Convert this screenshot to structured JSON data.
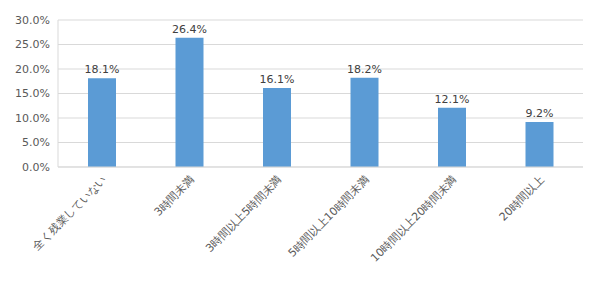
{
  "chart_data": {
    "type": "bar",
    "categories": [
      "全く残業していない",
      "3時間未満",
      "3時間以上5時間未満",
      "5時間以上10時間未満",
      "10時間以上20時間未満",
      "20時間以上"
    ],
    "values": [
      18.1,
      26.4,
      16.1,
      18.2,
      12.1,
      9.2
    ],
    "value_labels": [
      "18.1%",
      "26.4%",
      "16.1%",
      "18.2%",
      "12.1%",
      "9.2%"
    ],
    "color": "#5b9bd5",
    "ylim": [
      0,
      30
    ],
    "yticks": [
      {
        "value": 0,
        "label": "0.0%"
      },
      {
        "value": 5,
        "label": "5.0%"
      },
      {
        "value": 10,
        "label": "10.0%"
      },
      {
        "value": 15,
        "label": "15.0%"
      },
      {
        "value": 20,
        "label": "20.0%"
      },
      {
        "value": 25,
        "label": "25.0%"
      },
      {
        "value": 30,
        "label": "30.0%"
      }
    ],
    "grid": true,
    "data_labels": true
  }
}
